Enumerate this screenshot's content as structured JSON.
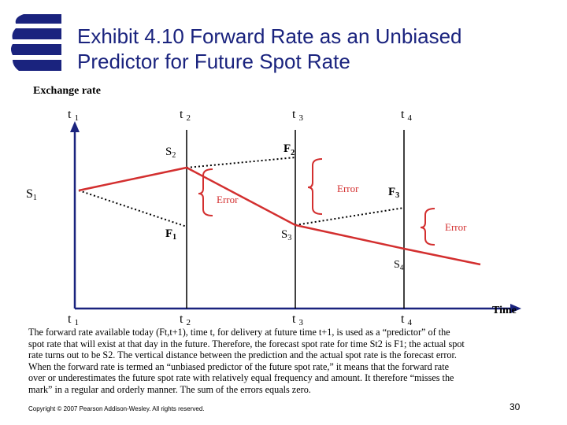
{
  "header": {
    "title_line1": "Exhibit 4.10  Forward Rate as an Unbiased",
    "title_line2": "Predictor for Future Spot Rate"
  },
  "diagram": {
    "y_axis_label": "Exchange rate",
    "x_axis_label": "Time",
    "time_labels": [
      "t",
      "t",
      "t",
      "t"
    ],
    "time_subscripts": [
      "1",
      "2",
      "3",
      "4"
    ],
    "spot_labels": [
      {
        "main": "S",
        "sub": "1"
      },
      {
        "main": "S",
        "sub": "2"
      },
      {
        "main": "S",
        "sub": "3"
      },
      {
        "main": "S",
        "sub": "4"
      }
    ],
    "forward_labels": [
      {
        "main": "F",
        "sub": "1"
      },
      {
        "main": "F",
        "sub": "2"
      },
      {
        "main": "F",
        "sub": "3"
      }
    ],
    "error_labels": [
      "Error",
      "Error",
      "Error"
    ],
    "colors": {
      "spot_line": "#d32f2f",
      "forward_line": "#000000",
      "brace": "#d32f2f",
      "error_text": "#d32f2f",
      "title": "#1a237e",
      "axes": "#1a237e"
    }
  },
  "caption": {
    "lines": [
      "The forward rate available today (Ft,t+1), time t, for delivery at future time t+1, is used as a “predictor” of the",
      "spot rate that will exist at that day in the future. Therefore, the forecast spot rate for time St2 is F1; the actual spot",
      "rate turns out to be S2. The vertical distance between the prediction and the actual spot rate is the forecast error.",
      "When the forward rate is termed an “unbiased predictor of the future spot rate,” it means that the forward rate",
      "over or underestimates the future spot rate with relatively equal frequency and amount. It therefore “misses the",
      "mark” in a regular and orderly manner. The sum of the errors equals zero."
    ]
  },
  "footer": {
    "copyright": "Copyright © 2007 Pearson Addison-Wesley. All rights reserved.",
    "page_number": "30"
  }
}
